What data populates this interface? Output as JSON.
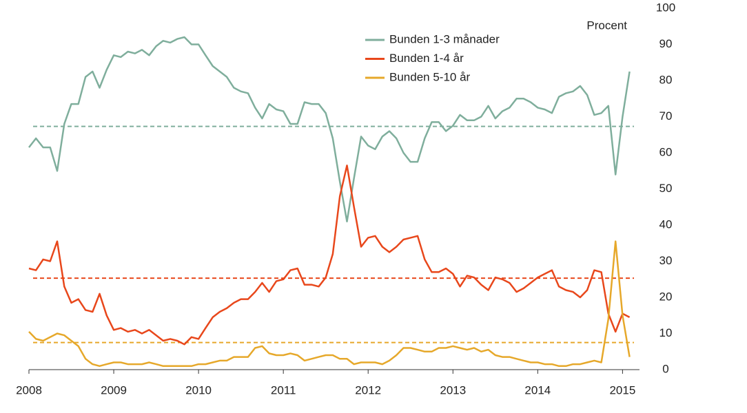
{
  "chart_data": {
    "type": "line",
    "y_axis_label": "Procent",
    "x": [
      2008,
      2008.083,
      2008.167,
      2008.25,
      2008.333,
      2008.417,
      2008.5,
      2008.583,
      2008.667,
      2008.75,
      2008.833,
      2008.917,
      2009,
      2009.083,
      2009.167,
      2009.25,
      2009.333,
      2009.417,
      2009.5,
      2009.583,
      2009.667,
      2009.75,
      2009.833,
      2009.917,
      2010,
      2010.083,
      2010.167,
      2010.25,
      2010.333,
      2010.417,
      2010.5,
      2010.583,
      2010.667,
      2010.75,
      2010.833,
      2010.917,
      2011,
      2011.083,
      2011.167,
      2011.25,
      2011.333,
      2011.417,
      2011.5,
      2011.583,
      2011.667,
      2011.75,
      2011.833,
      2011.917,
      2012,
      2012.083,
      2012.167,
      2012.25,
      2012.333,
      2012.417,
      2012.5,
      2012.583,
      2012.667,
      2012.75,
      2012.833,
      2012.917,
      2013,
      2013.083,
      2013.167,
      2013.25,
      2013.333,
      2013.417,
      2013.5,
      2013.583,
      2013.667,
      2013.75,
      2013.833,
      2013.917,
      2014,
      2014.083,
      2014.167,
      2014.25,
      2014.333,
      2014.417,
      2014.5,
      2014.583,
      2014.667,
      2014.75,
      2014.833,
      2014.917,
      2015,
      2015.083
    ],
    "series": [
      {
        "name": "Bunden 1-3 månader",
        "color": "#7fae9c",
        "values": [
          61.5,
          64,
          61.5,
          61.5,
          55,
          68,
          73.5,
          73.5,
          81,
          82.5,
          78,
          83,
          87,
          86.5,
          88,
          87.5,
          88.5,
          87,
          89.5,
          91,
          90.5,
          91.5,
          92,
          90,
          90,
          87,
          84,
          82.5,
          81,
          78,
          77,
          76.5,
          72.5,
          69.5,
          73.5,
          72,
          71.5,
          68,
          68,
          74,
          73.5,
          73.5,
          71,
          64,
          52,
          41,
          53,
          64.5,
          62,
          61,
          64.5,
          66,
          64,
          60,
          57.5,
          57.5,
          64,
          68.5,
          68.5,
          66,
          67.5,
          70.5,
          69,
          69,
          70,
          73,
          69.5,
          71.5,
          72.5,
          75,
          75,
          74,
          72.5,
          72,
          71,
          75.5,
          76.5,
          77,
          78.5,
          76,
          70.5,
          71,
          73,
          54,
          70,
          82.5
        ]
      },
      {
        "name": "Bunden 1-4 år",
        "color": "#e8471b",
        "values": [
          28,
          27.5,
          30.5,
          30,
          35.5,
          23,
          18.5,
          19.5,
          16.5,
          16,
          21,
          15,
          11,
          11.5,
          10.5,
          11,
          10,
          11,
          9.5,
          8,
          8.5,
          8,
          7,
          9,
          8.5,
          11.5,
          14.5,
          16,
          17,
          18.5,
          19.5,
          19.5,
          21.5,
          24,
          21.5,
          24.5,
          25,
          27.5,
          28,
          23.5,
          23.5,
          23,
          25.5,
          32,
          48,
          56.5,
          45,
          34,
          36.5,
          37,
          34,
          32.5,
          34,
          36,
          36.5,
          37,
          30.5,
          27,
          27,
          28,
          26.5,
          23,
          26,
          25.5,
          23.5,
          22,
          25.5,
          25,
          24,
          21.5,
          22.5,
          24,
          25.5,
          26.5,
          27.5,
          23,
          22,
          21.5,
          20,
          22,
          27.5,
          27,
          15.5,
          10.5,
          15.5,
          14.5
        ]
      },
      {
        "name": "Bunden 5-10 år",
        "color": "#e6a82a",
        "values": [
          10.5,
          8.5,
          8,
          9,
          10,
          9.5,
          8,
          6.5,
          3,
          1.5,
          1,
          1.5,
          2,
          2,
          1.5,
          1.5,
          1.5,
          2,
          1.5,
          1,
          1,
          1,
          1,
          1,
          1.5,
          1.5,
          2,
          2.5,
          2.5,
          3.5,
          3.5,
          3.5,
          6,
          6.5,
          4.5,
          4,
          4,
          4.5,
          4,
          2.5,
          3,
          3.5,
          4,
          4,
          3,
          3,
          1.5,
          2,
          2,
          2,
          1.5,
          2.5,
          4,
          6,
          6,
          5.5,
          5,
          5,
          6,
          6,
          6.5,
          6,
          5.5,
          6,
          5,
          5.5,
          4,
          3.5,
          3.5,
          3,
          2.5,
          2,
          2,
          1.5,
          1.5,
          1,
          1,
          1.5,
          1.5,
          2,
          2.5,
          2,
          14,
          35.5,
          15,
          3.5
        ]
      }
    ],
    "reference_lines": [
      {
        "value": 67.3,
        "color": "#7fae9c"
      },
      {
        "value": 25.3,
        "color": "#e8471b"
      },
      {
        "value": 7.5,
        "color": "#e6a82a"
      }
    ],
    "xlim": [
      2008,
      2015.2
    ],
    "xticks": [
      2008,
      2009,
      2010,
      2011,
      2012,
      2013,
      2014,
      2015
    ],
    "ylim": [
      0,
      100
    ],
    "yticks": [
      0,
      10,
      20,
      30,
      40,
      50,
      60,
      70,
      80,
      90,
      100
    ],
    "y_axis_side": "right",
    "legend_position": "top"
  }
}
